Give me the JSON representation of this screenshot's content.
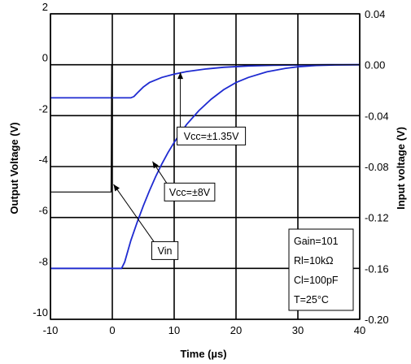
{
  "chart_data": {
    "type": "line",
    "xlabel": "Time (µs)",
    "ylabel_left": "Output Voltage (V)",
    "ylabel_right": "Input voltage (V)",
    "xlim": [
      -10,
      40
    ],
    "ylim_left": [
      -10,
      2
    ],
    "ylim_right": [
      -0.2,
      0.04
    ],
    "x_ticks": [
      "-10",
      "0",
      "10",
      "20",
      "30",
      "40"
    ],
    "y_left_ticks": [
      "2",
      "0",
      "-2",
      "-4",
      "-6",
      "-8",
      "-10"
    ],
    "y_right_ticks": [
      "0.04",
      "0.00",
      "-0.04",
      "-0.08",
      "-0.12",
      "-0.16",
      "-0.20"
    ],
    "grid": true,
    "series": [
      {
        "name": "Vcc=±1.35V",
        "axis": "left",
        "color": "#1f2bd1",
        "x": [
          -10,
          3,
          3.5,
          4,
          5,
          6,
          8,
          10,
          12,
          15,
          18,
          22,
          26,
          30,
          35,
          40
        ],
        "y": [
          -1.3,
          -1.3,
          -1.25,
          -1.12,
          -0.88,
          -0.7,
          -0.5,
          -0.37,
          -0.27,
          -0.17,
          -0.1,
          -0.05,
          -0.02,
          -0.01,
          0.0,
          0.0
        ]
      },
      {
        "name": "Vcc=±8V",
        "axis": "left",
        "color": "#1f2bd1",
        "x": [
          -10,
          1.5,
          2,
          3,
          4,
          5,
          6,
          7,
          8,
          9,
          10,
          12,
          14,
          16,
          18,
          20,
          22,
          25,
          28,
          30,
          33,
          36,
          40
        ],
        "y": [
          -8.0,
          -8.0,
          -7.75,
          -6.9,
          -6.2,
          -5.55,
          -4.95,
          -4.4,
          -3.9,
          -3.45,
          -3.05,
          -2.35,
          -1.8,
          -1.35,
          -0.98,
          -0.7,
          -0.5,
          -0.28,
          -0.14,
          -0.08,
          -0.03,
          -0.01,
          0.0
        ]
      },
      {
        "name": "Vin",
        "axis": "right",
        "color": "#000000",
        "x": [
          -10,
          -0.2,
          -0.1,
          40
        ],
        "y": [
          -0.1,
          -0.1,
          0.0,
          0.0
        ]
      }
    ],
    "annotations": [
      {
        "text": "Vcc=±1.35V",
        "x": 16,
        "y": -2.8,
        "arrow_to": [
          11,
          -0.3
        ]
      },
      {
        "text": "Vcc=±8V",
        "x": 12.5,
        "y": -5.0,
        "arrow_to": [
          6.5,
          -3.8
        ]
      },
      {
        "text": "Vin",
        "x": 8.5,
        "y": -7.3,
        "arrow_to": [
          0.2,
          -4.7
        ]
      }
    ],
    "info_box": [
      "Gain=101",
      "Rl=10kΩ",
      "Cl=100pF",
      "T=25°C"
    ]
  }
}
